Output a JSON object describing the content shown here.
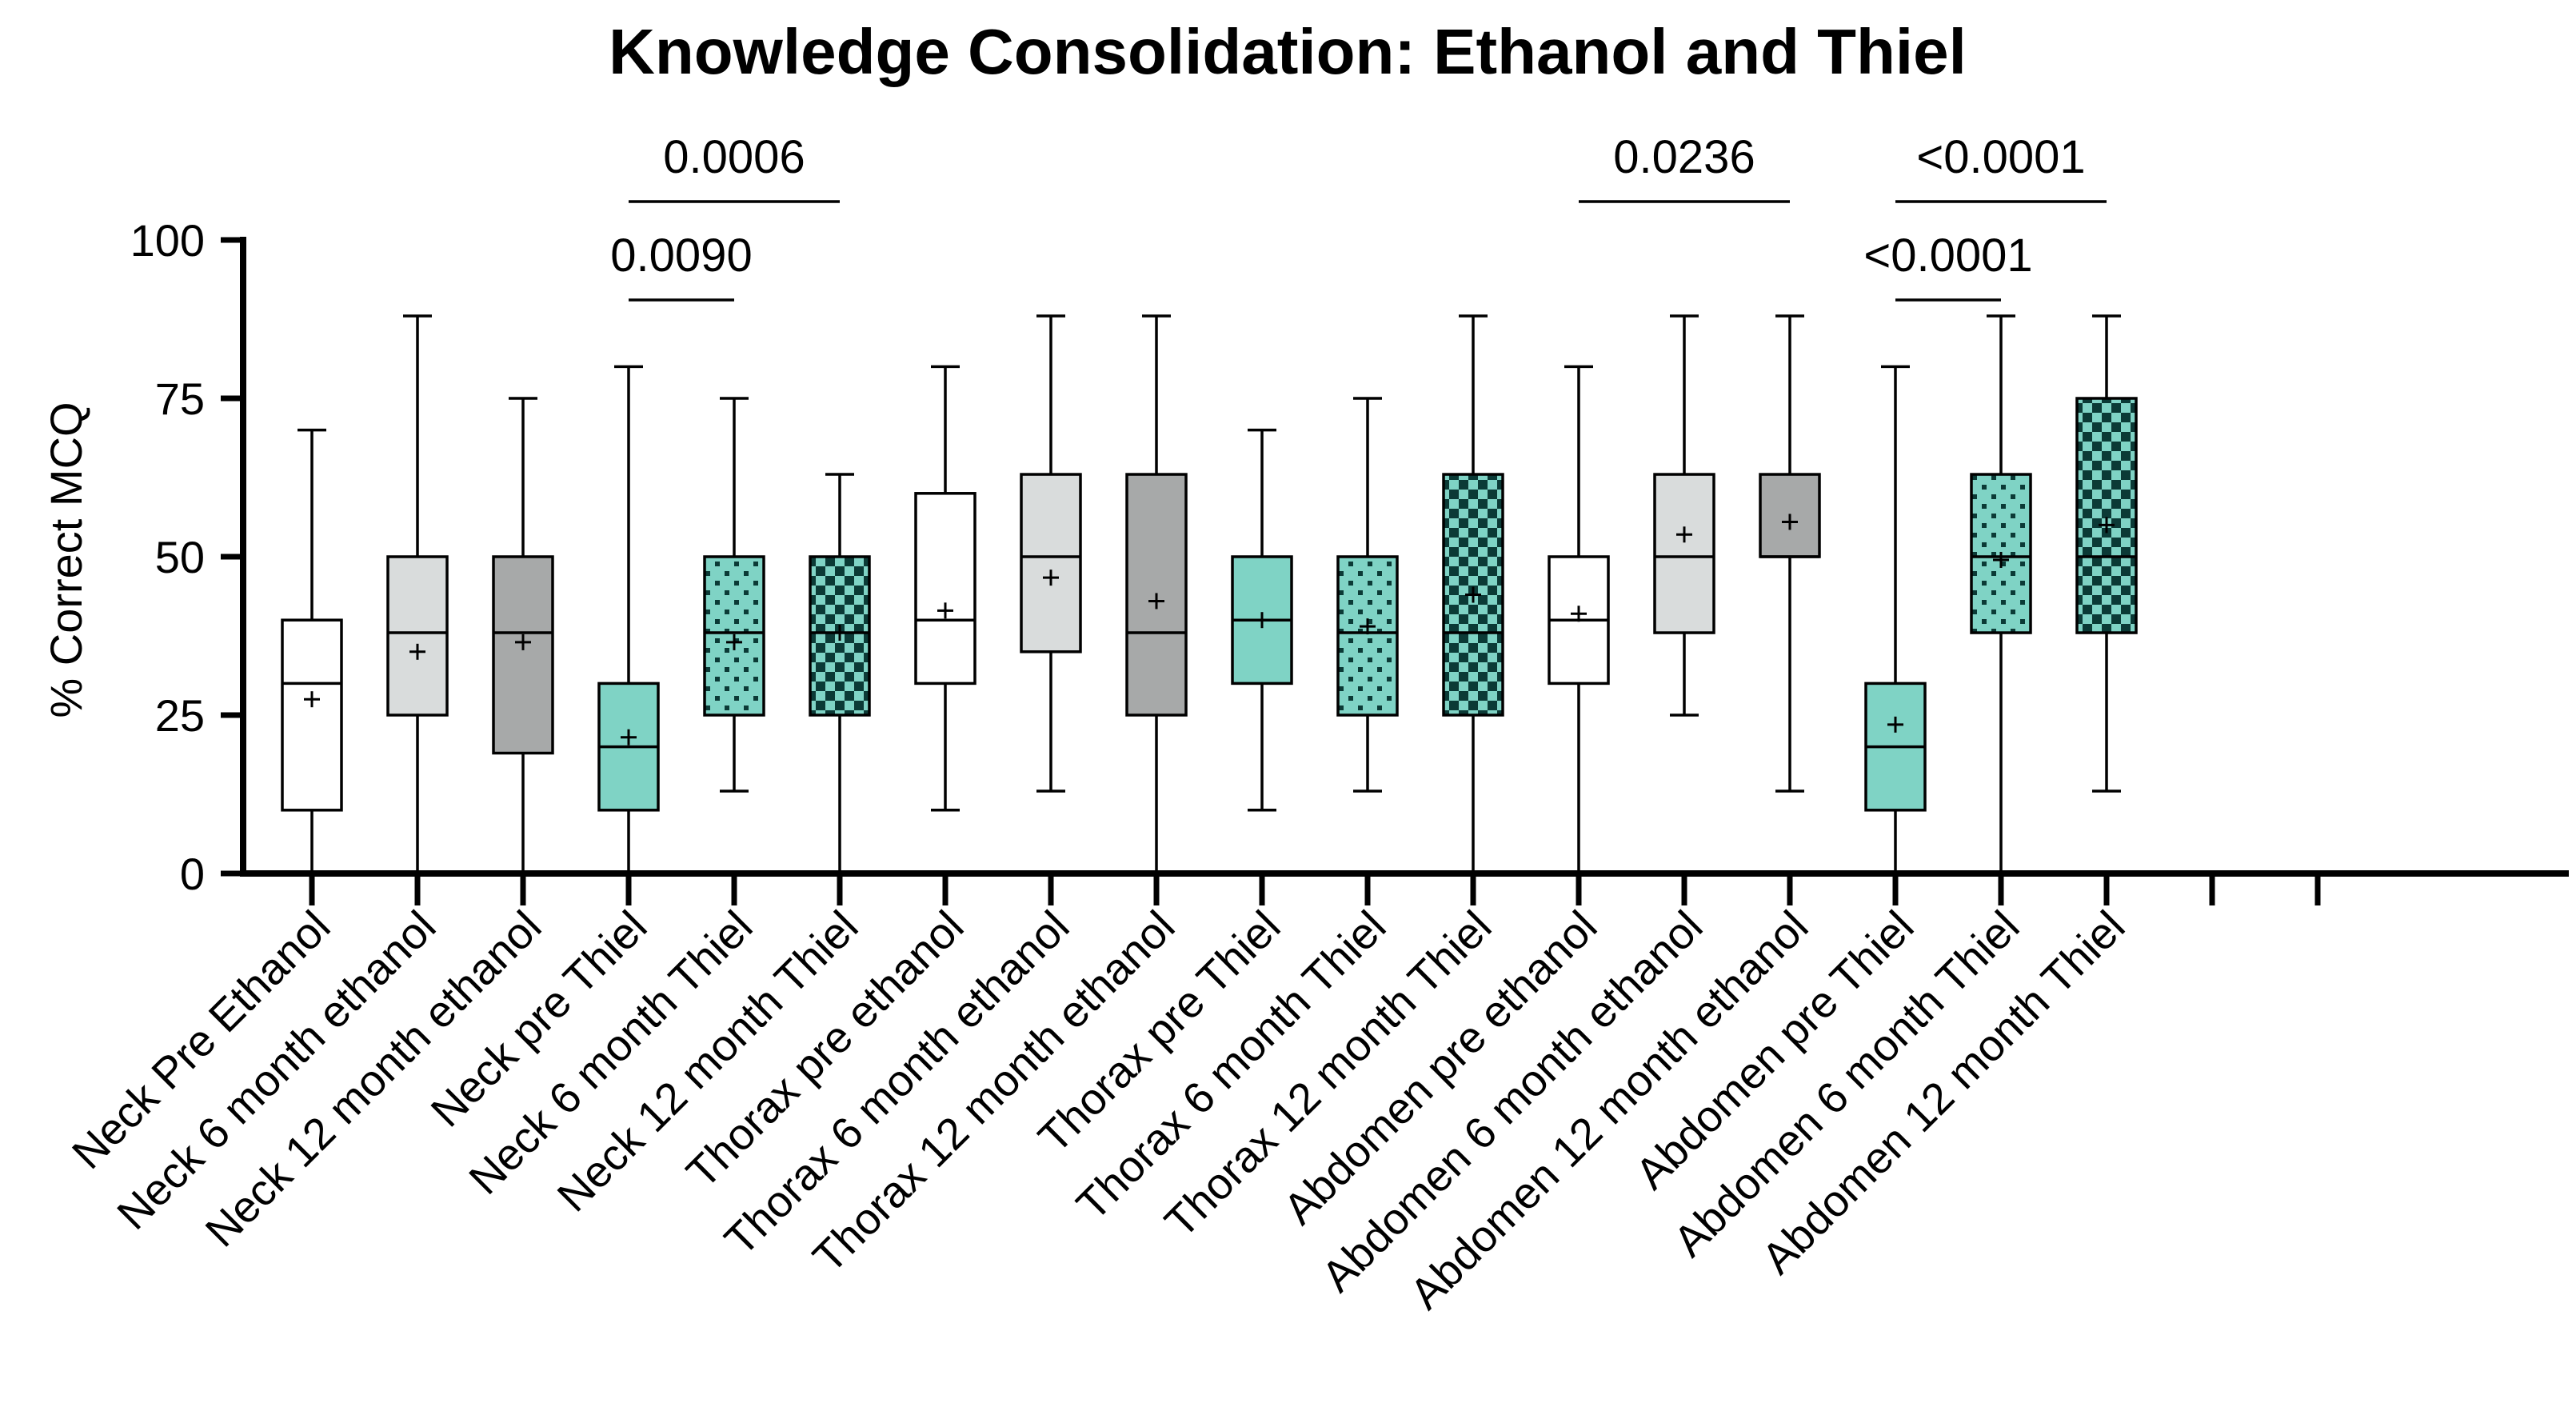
{
  "chart_data": {
    "type": "boxplot",
    "title": "Knowledge Consolidation: Ethanol and Thiel",
    "xlabel": "",
    "ylabel": "% Correct MCQ",
    "ylim": [
      0,
      100
    ],
    "yticks": [
      0,
      25,
      50,
      75,
      100
    ],
    "grid": false,
    "legend": "none",
    "colors": {
      "white": "#ffffff",
      "light_gray": "#d9dcdc",
      "dark_gray": "#a7a9a9",
      "teal": "#7fd3c5",
      "teal_pattern_light": "#7fd3c5",
      "teal_pattern_dark": "#0b3a36",
      "axis": "#000000"
    },
    "categories": [
      {
        "label": "Neck Pre Ethanol",
        "fill": "white",
        "pattern": "none",
        "whisker_low": 0,
        "q1": 10,
        "median": 30,
        "q3": 40,
        "whisker_high": 70,
        "mean": 27.5
      },
      {
        "label": "Neck 6 month ethanol",
        "fill": "light_gray",
        "pattern": "none",
        "whisker_low": 0,
        "q1": 25,
        "median": 38,
        "q3": 50,
        "whisker_high": 88,
        "mean": 35
      },
      {
        "label": "Neck 12 month ethanol",
        "fill": "dark_gray",
        "pattern": "none",
        "whisker_low": 0,
        "q1": 19,
        "median": 38,
        "q3": 50,
        "whisker_high": 75,
        "mean": 36.5
      },
      {
        "label": "Neck pre Thiel",
        "fill": "teal",
        "pattern": "none",
        "whisker_low": 0,
        "q1": 10,
        "median": 20,
        "q3": 30,
        "whisker_high": 80,
        "mean": 21.5
      },
      {
        "label": "Neck 6 month Thiel",
        "fill": "teal",
        "pattern": "dots",
        "whisker_low": 13,
        "q1": 25,
        "median": 38,
        "q3": 50,
        "whisker_high": 75,
        "mean": 36.5
      },
      {
        "label": "Neck 12 month Thiel",
        "fill": "teal",
        "pattern": "checker",
        "whisker_low": 0,
        "q1": 25,
        "median": 38,
        "q3": 50,
        "whisker_high": 63,
        "mean": 38
      },
      {
        "label": "Thorax pre ethanol",
        "fill": "white",
        "pattern": "none",
        "whisker_low": 10,
        "q1": 30,
        "median": 40,
        "q3": 60,
        "whisker_high": 80,
        "mean": 41.5
      },
      {
        "label": "Thorax 6 month ethanol",
        "fill": "light_gray",
        "pattern": "none",
        "whisker_low": 13,
        "q1": 35,
        "median": 50,
        "q3": 63,
        "whisker_high": 88,
        "mean": 46.7
      },
      {
        "label": "Thorax 12 month  ethanol",
        "fill": "dark_gray",
        "pattern": "none",
        "whisker_low": 0,
        "q1": 25,
        "median": 38,
        "q3": 63,
        "whisker_high": 88,
        "mean": 43
      },
      {
        "label": "Thorax pre Thiel",
        "fill": "teal",
        "pattern": "none",
        "whisker_low": 10,
        "q1": 30,
        "median": 40,
        "q3": 50,
        "whisker_high": 70,
        "mean": 40
      },
      {
        "label": "Thorax 6 month Thiel",
        "fill": "teal",
        "pattern": "dots",
        "whisker_low": 13,
        "q1": 25,
        "median": 38,
        "q3": 50,
        "whisker_high": 75,
        "mean": 39
      },
      {
        "label": "Thorax 12 month Thiel",
        "fill": "teal",
        "pattern": "checker",
        "whisker_low": 0,
        "q1": 25,
        "median": 38,
        "q3": 63,
        "whisker_high": 88,
        "mean": 44
      },
      {
        "label": "Abdomen pre ethanol",
        "fill": "white",
        "pattern": "none",
        "whisker_low": 0,
        "q1": 30,
        "median": 40,
        "q3": 50,
        "whisker_high": 80,
        "mean": 41
      },
      {
        "label": "Abdomen 6 month ethanol",
        "fill": "light_gray",
        "pattern": "none",
        "whisker_low": 25,
        "q1": 38,
        "median": 50,
        "q3": 63,
        "whisker_high": 88,
        "mean": 53.5
      },
      {
        "label": "Abdomen 12 month ethanol",
        "fill": "dark_gray",
        "pattern": "none",
        "whisker_low": 13,
        "q1": 50,
        "median": 50,
        "q3": 63,
        "whisker_high": 88,
        "mean": 55.5
      },
      {
        "label": "Abdomen pre Thiel",
        "fill": "teal",
        "pattern": "none",
        "whisker_low": 0,
        "q1": 10,
        "median": 20,
        "q3": 30,
        "whisker_high": 80,
        "mean": 23.5
      },
      {
        "label": "Abdomen 6 month Thiel",
        "fill": "teal",
        "pattern": "dots",
        "whisker_low": 0,
        "q1": 38,
        "median": 50,
        "q3": 63,
        "whisker_high": 88,
        "mean": 49.5
      },
      {
        "label": "Abdomen 12 month Thiel",
        "fill": "teal",
        "pattern": "checker",
        "whisker_low": 13,
        "q1": 38,
        "median": 50,
        "q3": 75,
        "whisker_high": 88,
        "mean": 55
      },
      {
        "label": "",
        "fill": "none",
        "pattern": "none",
        "empty": true
      },
      {
        "label": "",
        "fill": "none",
        "pattern": "none",
        "empty": true
      }
    ],
    "annotations": [
      {
        "from": 3,
        "to": 4,
        "text": "0.0090",
        "level": 1
      },
      {
        "from": 3,
        "to": 5,
        "text": "0.0006",
        "level": 2
      },
      {
        "from": 12,
        "to": 14,
        "text": "0.0236",
        "level": 2
      },
      {
        "from": 15,
        "to": 16,
        "text": "<0.0001",
        "level": 1
      },
      {
        "from": 15,
        "to": 17,
        "text": "<0.0001",
        "level": 2
      }
    ]
  }
}
